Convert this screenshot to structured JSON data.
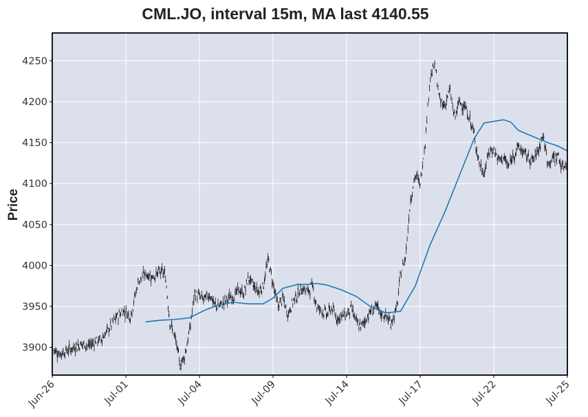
{
  "chart_data": {
    "type": "candlestick",
    "title": "CML.JO, interval 15m, MA last 4140.55",
    "xlabel": "",
    "ylabel": "Price",
    "ylim": [
      3866,
      4284
    ],
    "y_ticks": [
      3900,
      3950,
      4000,
      4050,
      4100,
      4150,
      4200,
      4250
    ],
    "x_ticks": [
      "Jun-26",
      "Jul-01",
      "Jul-04",
      "Jul-09",
      "Jul-14",
      "Jul-17",
      "Jul-22",
      "Jul-25"
    ],
    "grid": true,
    "legend": "none",
    "colors": {
      "plot_background": "#dce0ed",
      "grid": "#ffffff",
      "candles": "#000000",
      "moving_average": "#1f77b4",
      "frame": "#000000"
    },
    "price_series": {
      "name": "CML.JO",
      "x": [
        0,
        0.3,
        0.6,
        0.9,
        1.2,
        1.5,
        1.8,
        2.0,
        2.3,
        2.6,
        2.9,
        3.2,
        3.5,
        3.8,
        4.1,
        4.4,
        4.6,
        4.8,
        5.0,
        5.1,
        5.2,
        5.4,
        5.6,
        5.8,
        6.0,
        6.2,
        6.4,
        6.5,
        6.6,
        6.8,
        7.0,
        7.2,
        7.4,
        7.6,
        7.8,
        8.0,
        8.2,
        8.4,
        8.6,
        8.8,
        9.0,
        9.2,
        9.4,
        9.6,
        9.8,
        10.0,
        10.2,
        10.4,
        10.6,
        10.8,
        11.0,
        11.2,
        11.4,
        11.6,
        11.8,
        12.0,
        12.2,
        12.4,
        12.6,
        12.8,
        13.0,
        13.2,
        13.4,
        13.6,
        13.8,
        14.0,
        14.1,
        14.2,
        14.4,
        14.6,
        14.8,
        15.0,
        15.2,
        15.4,
        15.6,
        15.8,
        16.0,
        16.2,
        16.4,
        16.6,
        16.8,
        17.0,
        17.2,
        17.4,
        17.6,
        17.8,
        18.0,
        18.2,
        18.4,
        18.6,
        18.8,
        19.0,
        19.2,
        19.4,
        19.6,
        19.8,
        20.0,
        20.2,
        20.4,
        20.6,
        20.8,
        21.0
      ],
      "y": [
        3898,
        3892,
        3896,
        3900,
        3904,
        3902,
        3908,
        3910,
        3922,
        3936,
        3945,
        3938,
        3980,
        3990,
        3986,
        3992,
        3990,
        3930,
        3912,
        3898,
        3878,
        3890,
        3920,
        3965,
        3962,
        3958,
        3965,
        3960,
        3952,
        3950,
        3955,
        3960,
        3962,
        3970,
        3965,
        3985,
        3975,
        3968,
        3975,
        4008,
        3978,
        3950,
        3960,
        3940,
        3955,
        3965,
        3972,
        3968,
        3975,
        3948,
        3945,
        3940,
        3948,
        3935,
        3938,
        3940,
        3948,
        3930,
        3925,
        3935,
        3945,
        3950,
        3940,
        3938,
        3930,
        3942,
        3960,
        3990,
        4010,
        4080,
        4110,
        4100,
        4150,
        4230,
        4245,
        4200,
        4195,
        4215,
        4180,
        4200,
        4195,
        4180,
        4160,
        4125,
        4112,
        4138,
        4142,
        4128,
        4132,
        4120,
        4135,
        4145,
        4138,
        4132,
        4128,
        4140,
        4160,
        4125,
        4130,
        4135,
        4118,
        4128
      ]
    },
    "moving_average": {
      "name": "MA",
      "last": 4140.55,
      "x": [
        3.8,
        4.4,
        5.0,
        5.6,
        6.2,
        6.8,
        7.4,
        8.0,
        8.6,
        9.0,
        9.4,
        10.0,
        10.4,
        10.8,
        11.2,
        11.8,
        12.4,
        13.0,
        13.6,
        14.2,
        14.8,
        15.4,
        16.0,
        16.6,
        17.2,
        17.6,
        18.0,
        18.4,
        18.7,
        19.0,
        19.4,
        19.8,
        20.2,
        20.6,
        21.0
      ],
      "y": [
        3931,
        3933,
        3934,
        3936,
        3945,
        3952,
        3955,
        3953,
        3953,
        3960,
        3972,
        3977,
        3977,
        3978,
        3976,
        3970,
        3962,
        3949,
        3942,
        3944,
        3975,
        4025,
        4065,
        4110,
        4155,
        4174,
        4176,
        4178,
        4175,
        4165,
        4160,
        4155,
        4150,
        4146,
        4140
      ]
    }
  }
}
